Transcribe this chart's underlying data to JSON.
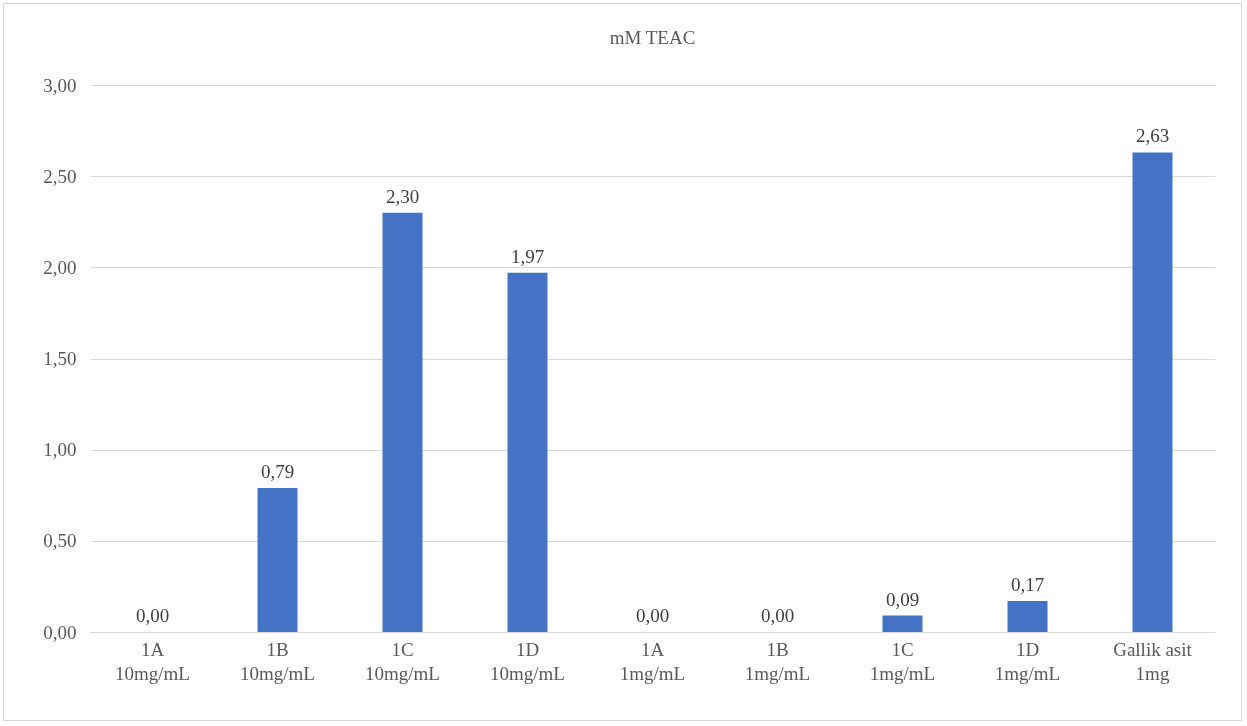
{
  "chart_data": {
    "type": "bar",
    "title": "mM TEAC",
    "categories": [
      "1A\n10mg/mL",
      "1B\n10mg/mL",
      "1C\n10mg/mL",
      "1D\n10mg/mL",
      "1A\n1mg/mL",
      "1B\n1mg/mL",
      "1C\n1mg/mL",
      "1D\n1mg/mL",
      "Gallik asit\n1mg"
    ],
    "values": [
      0,
      0.79,
      2.3,
      1.97,
      0,
      0,
      0.09,
      0.17,
      2.63
    ],
    "value_labels": [
      "0,00",
      "0,79",
      "2,30",
      "1,97",
      "0,00",
      "0,00",
      "0,09",
      "0,17",
      "2,63"
    ],
    "color": "#4472c4",
    "ylim": [
      0,
      3
    ],
    "yticks": [
      {
        "value": 0,
        "label": "0,00"
      },
      {
        "value": 0.5,
        "label": "0,50"
      },
      {
        "value": 1,
        "label": "1,00"
      },
      {
        "value": 1.5,
        "label": "1,50"
      },
      {
        "value": 2,
        "label": "2,00"
      },
      {
        "value": 2.5,
        "label": "2,50"
      },
      {
        "value": 3,
        "label": "3,00"
      }
    ],
    "grid": "y"
  }
}
